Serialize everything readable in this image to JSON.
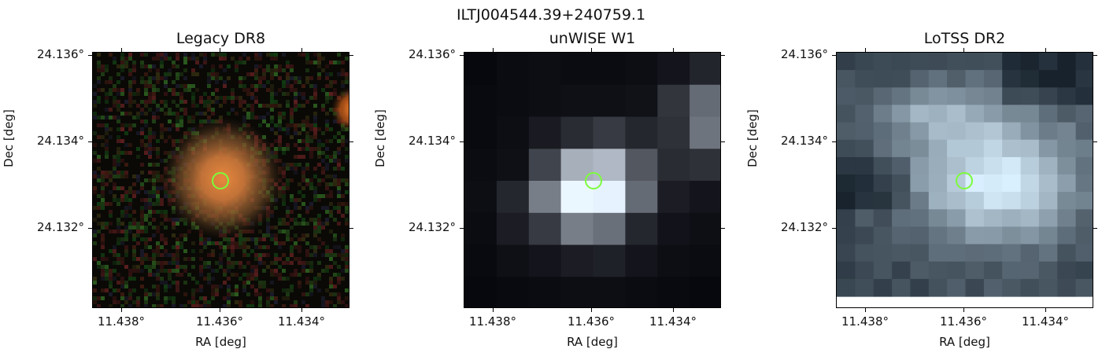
{
  "figure": {
    "suptitle": "ILTJ004544.39+240759.1"
  },
  "panels": [
    {
      "title": "Legacy DR8",
      "yticks": [
        "24.136°",
        "24.134°",
        "24.132°"
      ],
      "xticks": [
        "11.438°",
        "11.436°",
        "11.434°"
      ],
      "xlabel": "RA [deg]",
      "ylabel": "Dec [deg]"
    },
    {
      "title": "unWISE W1",
      "yticks": [
        "24.136°",
        "24.134°",
        "24.132°"
      ],
      "xticks": [
        "11.438°",
        "11.436°",
        "11.434°"
      ],
      "xlabel": "RA [deg]",
      "ylabel": "Dec [deg]"
    },
    {
      "title": "LoTSS DR2",
      "yticks": [
        "24.136°",
        "24.134°",
        "24.132°"
      ],
      "xticks": [
        "11.438°",
        "11.436°",
        "11.434°"
      ],
      "xlabel": "RA [deg]",
      "ylabel": "Dec [deg]"
    }
  ],
  "colors": {
    "marker_circle": "#7CFC3A",
    "optical_source": "#C8763A",
    "frame": "#000000"
  }
}
